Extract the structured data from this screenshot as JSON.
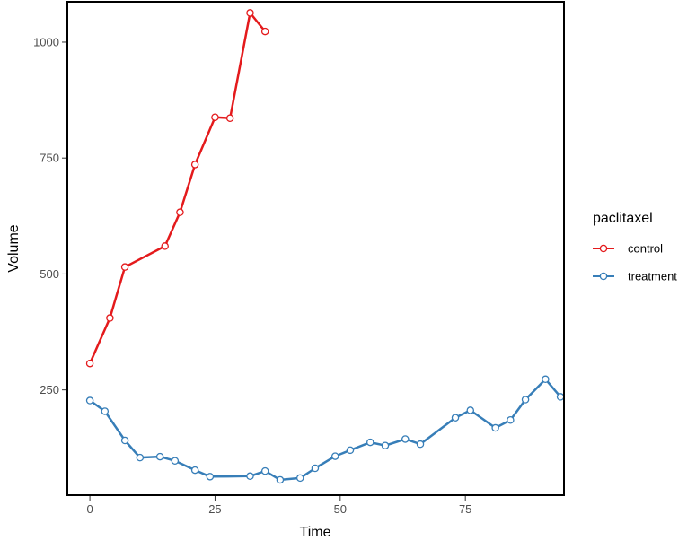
{
  "chart_data": {
    "type": "line",
    "xlabel": "Time",
    "ylabel": "Volume",
    "xlim": [
      -4.5,
      94.7
    ],
    "ylim": [
      23,
      1087
    ],
    "x_ticks": [
      0,
      25,
      50,
      75
    ],
    "y_ticks": [
      250,
      500,
      750,
      1000
    ],
    "grid": false,
    "legend": {
      "title": "paclitaxel",
      "position": "right"
    },
    "series": [
      {
        "name": "control",
        "color": "#e41a1c",
        "points": [
          [
            0,
            307
          ],
          [
            4,
            405
          ],
          [
            7,
            515
          ],
          [
            15,
            560
          ],
          [
            18,
            633
          ],
          [
            21,
            736
          ],
          [
            25,
            838
          ],
          [
            28,
            836
          ],
          [
            32,
            1063
          ],
          [
            35,
            1023
          ]
        ]
      },
      {
        "name": "treatment",
        "color": "#377eb8",
        "points": [
          [
            0,
            227
          ],
          [
            3,
            204
          ],
          [
            7,
            141
          ],
          [
            10,
            104
          ],
          [
            14,
            106
          ],
          [
            17,
            97
          ],
          [
            21,
            77
          ],
          [
            24,
            63
          ],
          [
            32,
            64
          ],
          [
            35,
            75
          ],
          [
            38,
            56
          ],
          [
            42,
            60
          ],
          [
            45,
            81
          ],
          [
            49,
            107
          ],
          [
            52,
            120
          ],
          [
            56,
            137
          ],
          [
            59,
            130
          ],
          [
            63,
            144
          ],
          [
            66,
            133
          ],
          [
            73,
            190
          ],
          [
            76,
            206
          ],
          [
            81,
            168
          ],
          [
            84,
            185
          ],
          [
            87,
            229
          ],
          [
            91,
            273
          ],
          [
            94,
            235
          ]
        ]
      }
    ]
  }
}
